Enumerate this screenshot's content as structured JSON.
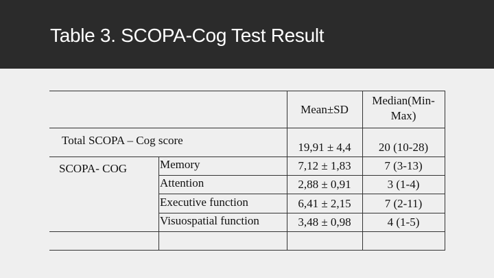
{
  "header": {
    "title": "Table 3. SCOPA-Cog Test Result"
  },
  "table": {
    "columns": [
      "Mean±SD",
      "Median(Min-Max)"
    ],
    "total": {
      "label": "Total SCOPA – Cog score",
      "mean": "19,91 ± 4,4",
      "median": "20 (10-28)"
    },
    "group": {
      "label": "SCOPA- COG",
      "rows": [
        {
          "label": "Memory",
          "mean": "7,12 ± 1,83",
          "median": "7 (3-13)"
        },
        {
          "label": "Attention",
          "mean": "2,88 ± 0,91",
          "median": "3 (1-4)"
        },
        {
          "label": "Executive function",
          "mean": "6,41 ± 2,15",
          "median": "7 (2-11)"
        },
        {
          "label": "Visuospatial function",
          "mean": "3,48 ± 0,98",
          "median": "4 (1-5)"
        }
      ]
    }
  }
}
